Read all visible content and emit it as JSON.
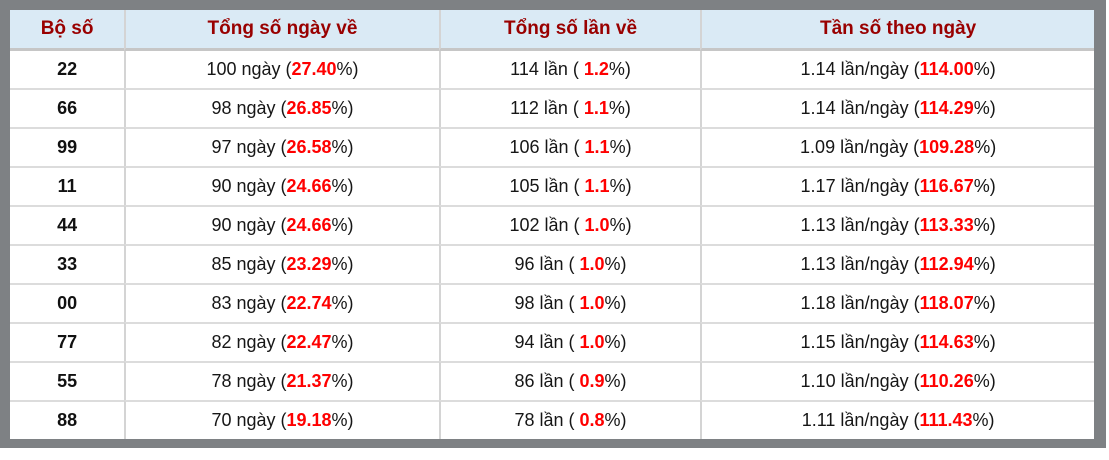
{
  "colors": {
    "frame_gray": "#7e8184",
    "header_bg": "#daeaf5",
    "header_text": "#990000",
    "value_red": "#ff0000",
    "body_text": "#161616",
    "cell_border": "#d4d4d4"
  },
  "table": {
    "headers": {
      "pair": "Bộ số",
      "days": "Tổng số ngày về",
      "times": "Tổng số lần về",
      "freq": "Tần số theo ngày"
    },
    "rows": [
      {
        "pair": "22",
        "days": {
          "pre": "100 ngày (",
          "value": "27.40",
          "post": "%)"
        },
        "times": {
          "pre": "114 lần ( ",
          "value": "1.2",
          "post": "%)"
        },
        "freq": {
          "pre": "1.14 lần/ngày (",
          "value": "114.00",
          "post": "%)"
        }
      },
      {
        "pair": "66",
        "days": {
          "pre": "98 ngày (",
          "value": "26.85",
          "post": "%)"
        },
        "times": {
          "pre": "112 lần ( ",
          "value": "1.1",
          "post": "%)"
        },
        "freq": {
          "pre": "1.14 lần/ngày (",
          "value": "114.29",
          "post": "%)"
        }
      },
      {
        "pair": "99",
        "days": {
          "pre": "97 ngày (",
          "value": "26.58",
          "post": "%)"
        },
        "times": {
          "pre": "106 lần ( ",
          "value": "1.1",
          "post": "%)"
        },
        "freq": {
          "pre": "1.09 lần/ngày (",
          "value": "109.28",
          "post": "%)"
        }
      },
      {
        "pair": "11",
        "days": {
          "pre": "90 ngày (",
          "value": "24.66",
          "post": "%)"
        },
        "times": {
          "pre": "105 lần ( ",
          "value": "1.1",
          "post": "%)"
        },
        "freq": {
          "pre": "1.17 lần/ngày (",
          "value": "116.67",
          "post": "%)"
        }
      },
      {
        "pair": "44",
        "days": {
          "pre": "90 ngày (",
          "value": "24.66",
          "post": "%)"
        },
        "times": {
          "pre": "102 lần ( ",
          "value": "1.0",
          "post": "%)"
        },
        "freq": {
          "pre": "1.13 lần/ngày (",
          "value": "113.33",
          "post": "%)"
        }
      },
      {
        "pair": "33",
        "days": {
          "pre": "85 ngày (",
          "value": "23.29",
          "post": "%)"
        },
        "times": {
          "pre": "96 lần ( ",
          "value": "1.0",
          "post": "%)"
        },
        "freq": {
          "pre": "1.13 lần/ngày (",
          "value": "112.94",
          "post": "%)"
        }
      },
      {
        "pair": "00",
        "days": {
          "pre": "83 ngày (",
          "value": "22.74",
          "post": "%)"
        },
        "times": {
          "pre": "98 lần ( ",
          "value": "1.0",
          "post": "%)"
        },
        "freq": {
          "pre": "1.18 lần/ngày (",
          "value": "118.07",
          "post": "%)"
        }
      },
      {
        "pair": "77",
        "days": {
          "pre": "82 ngày (",
          "value": "22.47",
          "post": "%)"
        },
        "times": {
          "pre": "94 lần ( ",
          "value": "1.0",
          "post": "%)"
        },
        "freq": {
          "pre": "1.15 lần/ngày (",
          "value": "114.63",
          "post": "%)"
        }
      },
      {
        "pair": "55",
        "days": {
          "pre": "78 ngày (",
          "value": "21.37",
          "post": "%)"
        },
        "times": {
          "pre": "86 lần ( ",
          "value": "0.9",
          "post": "%)"
        },
        "freq": {
          "pre": "1.10 lần/ngày (",
          "value": "110.26",
          "post": "%)"
        }
      },
      {
        "pair": "88",
        "days": {
          "pre": "70 ngày (",
          "value": "19.18",
          "post": "%)"
        },
        "times": {
          "pre": "78 lần ( ",
          "value": "0.8",
          "post": "%)"
        },
        "freq": {
          "pre": "1.11 lần/ngày (",
          "value": "111.43",
          "post": "%)"
        }
      }
    ]
  }
}
